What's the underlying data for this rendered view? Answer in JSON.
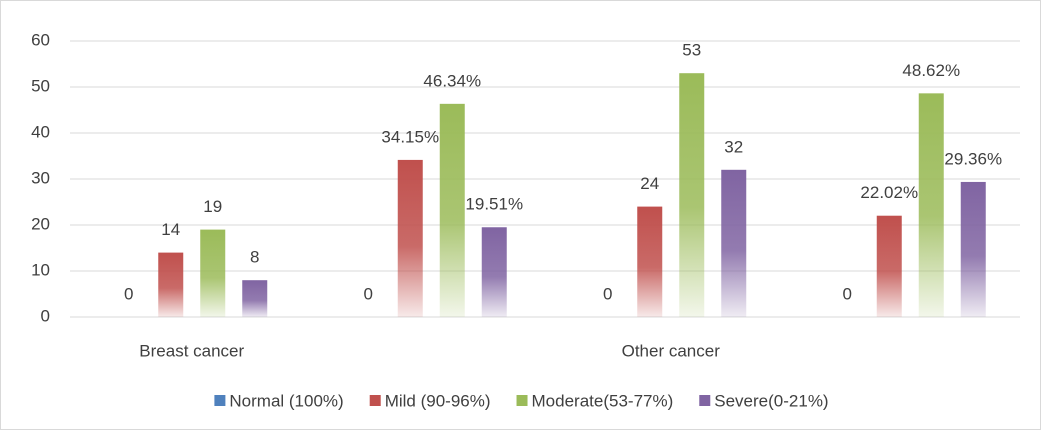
{
  "chart_data": {
    "type": "bar",
    "categories": [
      "Breast cancer",
      null,
      "Other cancer",
      null
    ],
    "series": [
      {
        "name": "Normal (100%)",
        "color": "#4f81bd",
        "values": [
          0,
          0,
          0,
          0
        ],
        "value_labels": [
          "0",
          "0",
          "0",
          "0"
        ]
      },
      {
        "name": "Mild (90-96%)",
        "color": "#c0504d",
        "values": [
          14,
          34.15,
          24,
          22.02
        ],
        "value_labels": [
          "14",
          "34.15%",
          "24",
          "22.02%"
        ]
      },
      {
        "name": "Moderate(53-77%)",
        "color": "#9bbb59",
        "values": [
          19,
          46.34,
          53,
          48.62
        ],
        "value_labels": [
          "19",
          "46.34%",
          "53",
          "48.62%"
        ]
      },
      {
        "name": "Severe(0-21%)",
        "color": "#8064a2",
        "values": [
          8,
          19.51,
          32,
          29.36
        ],
        "value_labels": [
          "8",
          "19.51%",
          "32",
          "29.36%"
        ]
      }
    ],
    "ylim": [
      0,
      60
    ],
    "yticks": [
      0,
      10,
      20,
      30,
      40,
      50,
      60
    ],
    "grid": true,
    "legend": "bottom"
  }
}
